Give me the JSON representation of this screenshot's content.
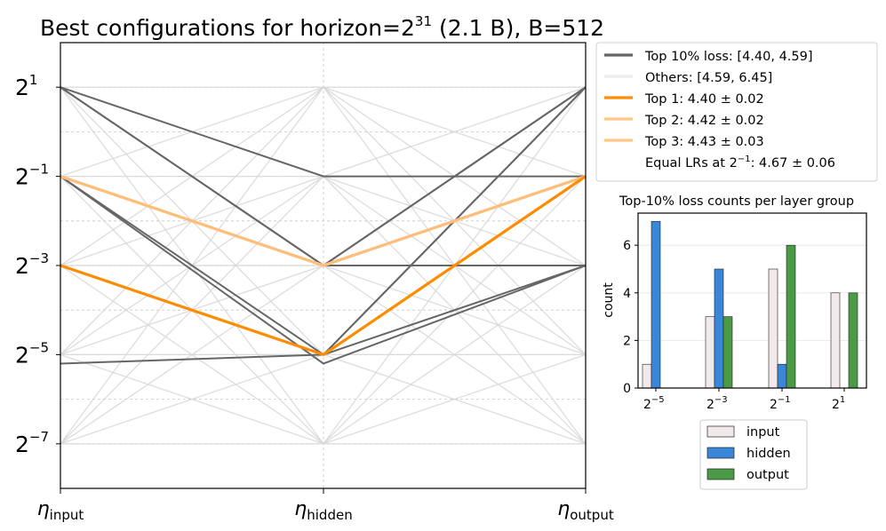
{
  "chart_data": [
    {
      "type": "parallel-coordinates",
      "title": "Best configurations for horizon=2^31 (2.1 B), B=512",
      "title_parts": {
        "pre": "Best configurations for horizon=2",
        "exp": "31",
        "post": " (2.1 B), B=512"
      },
      "axes": [
        {
          "key": "input",
          "label_symbol": "η",
          "label_sub": "input"
        },
        {
          "key": "hidden",
          "label_symbol": "η",
          "label_sub": "hidden"
        },
        {
          "key": "output",
          "label_symbol": "η",
          "label_sub": "output"
        }
      ],
      "y_scale": "log2",
      "y_lim_log2": [
        -8,
        2
      ],
      "y_ticks": [
        {
          "base": "2",
          "exp": "1",
          "log2": 1
        },
        {
          "base": "2",
          "exp": "−1",
          "log2": -1
        },
        {
          "base": "2",
          "exp": "−3",
          "log2": -3
        },
        {
          "base": "2",
          "exp": "−5",
          "log2": -5
        },
        {
          "base": "2",
          "exp": "−7",
          "log2": -7
        }
      ],
      "grid_levels_log2": [
        1,
        0,
        -1,
        -2,
        -3,
        -4,
        -5,
        -6,
        -7
      ],
      "legend": [
        {
          "label": "Top 10% loss: [4.40, 4.59]",
          "color": "#666666",
          "style": "top10"
        },
        {
          "label": "Others: [4.59, 6.45]",
          "color": "#eeeeee",
          "style": "others"
        },
        {
          "label": "Top 1: 4.40 ± 0.02",
          "color": "#ff8c00",
          "style": "top1"
        },
        {
          "label": "Top 2: 4.42 ± 0.02",
          "color": "#ffc07a",
          "style": "top2"
        },
        {
          "label": "Top 3: 4.43 ± 0.03",
          "color": "#ffc07a",
          "style": "top3"
        },
        {
          "label_pre": "Equal LRs at 2",
          "label_exp": "−1",
          "label_post": ": 4.67 ± 0.06",
          "style": "none"
        }
      ],
      "top10_lines": [
        [
          1,
          -3,
          1
        ],
        [
          1,
          -3,
          1
        ],
        [
          1,
          -1,
          -1
        ],
        [
          -1,
          -3,
          -3
        ],
        [
          -1,
          -5,
          1
        ],
        [
          -1,
          -5.2,
          -3
        ],
        [
          -3,
          -5,
          -3
        ],
        [
          -5.2,
          -5,
          1
        ],
        [
          -1,
          -3,
          -1
        ],
        [
          -3,
          -5,
          -1
        ]
      ],
      "top_configs": [
        {
          "rank": 1,
          "log2_lr": [
            -3,
            -5,
            -1
          ]
        },
        {
          "rank": 2,
          "log2_lr": [
            -1,
            -3,
            -1
          ]
        },
        {
          "rank": 3,
          "log2_lr": [
            -1,
            -3,
            -1
          ]
        }
      ],
      "others_range": [
        4.59,
        6.45
      ],
      "top10_range": [
        4.4,
        4.59
      ]
    },
    {
      "type": "bar",
      "title": "Top-10% loss counts per layer group",
      "ylabel": "count",
      "xlabel": "",
      "ylim": [
        0,
        7.35
      ],
      "y_ticks": [
        "0",
        "2",
        "4",
        "6"
      ],
      "categories": [
        {
          "base": "2",
          "exp": "−5"
        },
        {
          "base": "2",
          "exp": "−3"
        },
        {
          "base": "2",
          "exp": "−1"
        },
        {
          "base": "2",
          "exp": "1"
        }
      ],
      "series": [
        {
          "name": "input",
          "color": "#f2e9ea",
          "values": [
            1,
            3,
            5,
            4
          ]
        },
        {
          "name": "hidden",
          "color": "#3a86d8",
          "values": [
            7,
            5,
            1,
            0
          ]
        },
        {
          "name": "output",
          "color": "#4a9a46",
          "values": [
            0,
            3,
            6,
            4
          ]
        }
      ]
    }
  ]
}
